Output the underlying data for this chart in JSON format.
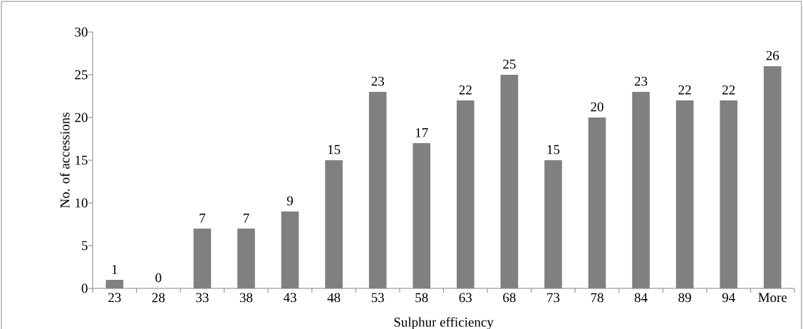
{
  "chart_data": {
    "type": "bar",
    "xlabel": "Sulphur efficiency",
    "ylabel": "No. of accessions",
    "categories": [
      "23",
      "28",
      "33",
      "38",
      "43",
      "48",
      "53",
      "58",
      "63",
      "68",
      "73",
      "78",
      "84",
      "89",
      "94",
      "More"
    ],
    "values": [
      1,
      0,
      7,
      7,
      9,
      15,
      23,
      17,
      22,
      25,
      15,
      20,
      23,
      22,
      22,
      26
    ],
    "color": "#808080",
    "ylim": [
      0,
      30
    ],
    "yticks": [
      0,
      5,
      10,
      15,
      20,
      25,
      30
    ],
    "grid": false,
    "data_labels": true
  }
}
